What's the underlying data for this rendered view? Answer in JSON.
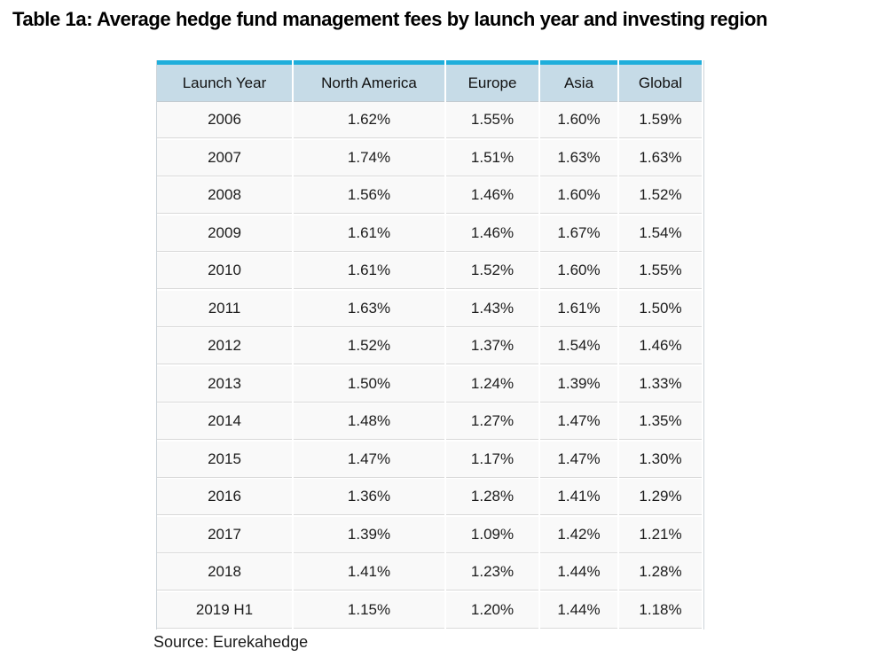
{
  "colors": {
    "accent_cyan": "#1FAEDB",
    "header_bg": "#C6DBE7",
    "row_bg": "#F9F9F9",
    "row_border": "#D9D9D9",
    "outer_border": "#CCD4D9",
    "title_text": "#000000",
    "body_text": "#1B1B1B"
  },
  "chart_data": {
    "type": "table",
    "title": "Table 1a: Average hedge fund management fees by launch year and investing region",
    "columns": [
      "Launch Year",
      "North America",
      "Europe",
      "Asia",
      "Global"
    ],
    "rows": [
      [
        "2006",
        "1.62%",
        "1.55%",
        "1.60%",
        "1.59%"
      ],
      [
        "2007",
        "1.74%",
        "1.51%",
        "1.63%",
        "1.63%"
      ],
      [
        "2008",
        "1.56%",
        "1.46%",
        "1.60%",
        "1.52%"
      ],
      [
        "2009",
        "1.61%",
        "1.46%",
        "1.67%",
        "1.54%"
      ],
      [
        "2010",
        "1.61%",
        "1.52%",
        "1.60%",
        "1.55%"
      ],
      [
        "2011",
        "1.63%",
        "1.43%",
        "1.61%",
        "1.50%"
      ],
      [
        "2012",
        "1.52%",
        "1.37%",
        "1.54%",
        "1.46%"
      ],
      [
        "2013",
        "1.50%",
        "1.24%",
        "1.39%",
        "1.33%"
      ],
      [
        "2014",
        "1.48%",
        "1.27%",
        "1.47%",
        "1.35%"
      ],
      [
        "2015",
        "1.47%",
        "1.17%",
        "1.47%",
        "1.30%"
      ],
      [
        "2016",
        "1.36%",
        "1.28%",
        "1.41%",
        "1.29%"
      ],
      [
        "2017",
        "1.39%",
        "1.09%",
        "1.42%",
        "1.21%"
      ],
      [
        "2018",
        "1.41%",
        "1.23%",
        "1.44%",
        "1.28%"
      ],
      [
        "2019 H1",
        "1.15%",
        "1.20%",
        "1.44%",
        "1.18%"
      ]
    ],
    "source": "Source: Eurekahedge",
    "units": "percent",
    "value_format": "x.xx%",
    "legend_position": "none",
    "grid": "row-separators"
  }
}
